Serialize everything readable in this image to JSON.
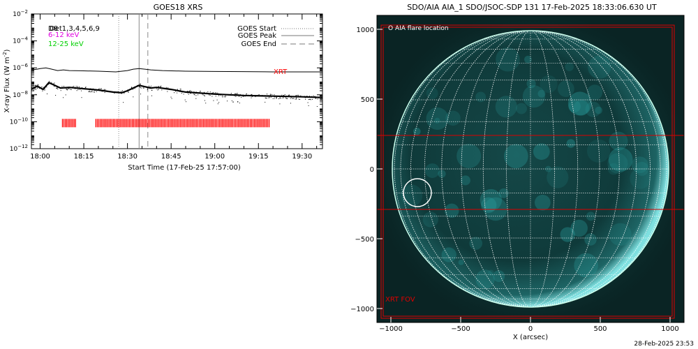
{
  "chart_data": [
    {
      "type": "line",
      "title": "GOES18 XRS",
      "xlabel": "Start Time (17-Feb-25 17:57:00)",
      "ylabel": "X-ray Flux (W m",
      "ylabel_sup": "-2",
      "ylabel_close": ")",
      "yscale": "log",
      "ylim_exp": [
        -12,
        -2
      ],
      "ytick_exps": [
        -12,
        -10,
        -8,
        -6,
        -4,
        -2
      ],
      "xlim": [
        "17:57",
        "19:37"
      ],
      "xticks": [
        "18:00",
        "18:15",
        "18:30",
        "18:45",
        "19:00",
        "19:15",
        "19:30"
      ],
      "legend_left": {
        "top_a": "D8",
        "top_b": "Det1,3,4,5,6,9",
        "band1": "6-12 keV",
        "band2": "12-25 keV",
        "band1_color": "#e000e0",
        "band2_color": "#00d000"
      },
      "legend_right": [
        "GOES Start",
        "GOES Peak",
        "GOES End"
      ],
      "markers": {
        "start": "18:27",
        "peak": "18:34",
        "end": "18:37"
      },
      "xrt_label": "XRT",
      "xrt_color": "#ff0000",
      "xrt_level_exp": -10.1,
      "xrt_bands": [
        {
          "start": "18:07:30",
          "end": "18:12:00"
        },
        {
          "start": "18:19:00",
          "end": "19:18:30"
        }
      ],
      "series": [
        {
          "values_desc": "long channel",
          "x": [
            "17:57",
            "17:59",
            "18:00",
            "18:02",
            "18:04",
            "18:06",
            "18:08",
            "18:10",
            "18:14",
            "18:20",
            "18:26",
            "18:30",
            "18:32",
            "18:34",
            "18:36",
            "18:38",
            "18:42",
            "18:50",
            "19:00",
            "19:10",
            "19:20",
            "19:30",
            "19:37"
          ],
          "y_exp": [
            -6.15,
            -6.1,
            -6.05,
            -6.0,
            -6.1,
            -6.2,
            -6.15,
            -6.2,
            -6.22,
            -6.25,
            -6.3,
            -6.2,
            -6.1,
            -6.05,
            -6.1,
            -6.15,
            -6.2,
            -6.25,
            -6.27,
            -6.28,
            -6.3,
            -6.3,
            -6.3
          ]
        },
        {
          "values_desc": "short channel",
          "x": [
            "17:57",
            "17:59",
            "18:01",
            "18:03",
            "18:05",
            "18:07",
            "18:10",
            "18:15",
            "18:20",
            "18:25",
            "18:28",
            "18:30",
            "18:32",
            "18:34",
            "18:36",
            "18:38",
            "18:40",
            "18:45",
            "18:50",
            "19:00",
            "19:10",
            "19:20",
            "19:30",
            "19:37"
          ],
          "y_exp": [
            -7.6,
            -7.35,
            -7.6,
            -7.1,
            -7.3,
            -7.5,
            -7.45,
            -7.55,
            -7.65,
            -7.8,
            -7.85,
            -7.7,
            -7.5,
            -7.3,
            -7.4,
            -7.5,
            -7.45,
            -7.6,
            -7.8,
            -7.95,
            -8.05,
            -8.1,
            -8.15,
            -8.2
          ]
        }
      ]
    },
    {
      "type": "image",
      "title": "SDO/AIA AIA_1 SDO/JSOC-SDP 131 17-Feb-2025 18:33:06.630 UT",
      "xlabel": "X (arcsec)",
      "xlim": [
        -1100,
        1100
      ],
      "ylim": [
        -1100,
        1100
      ],
      "xticks": [
        -1000,
        -500,
        0,
        500,
        1000
      ],
      "yticks": [
        -1000,
        -500,
        0,
        500,
        1000
      ],
      "xtick_labels": [
        "−1000",
        "−500",
        "0",
        "500",
        "1000"
      ],
      "ytick_labels": [
        "−1000",
        "−500",
        "0",
        "500",
        "1000"
      ],
      "solar_radius": 990,
      "legend": "O AIA flare location",
      "xrt_fov_label": "XRT FOV",
      "xrt_fov": {
        "x": [
          -1070,
          1030
        ],
        "y": [
          -1070,
          1030
        ]
      },
      "xrt_band": {
        "y": [
          -290,
          240
        ]
      },
      "flare": {
        "x": -810,
        "y": -170,
        "r": 100
      },
      "colors": {
        "disk": "#0f3636",
        "limb": "#cfe",
        "grid": "#ffffff",
        "fov": "#dd0000"
      }
    }
  ],
  "footer": "28-Feb-2025 23:53"
}
